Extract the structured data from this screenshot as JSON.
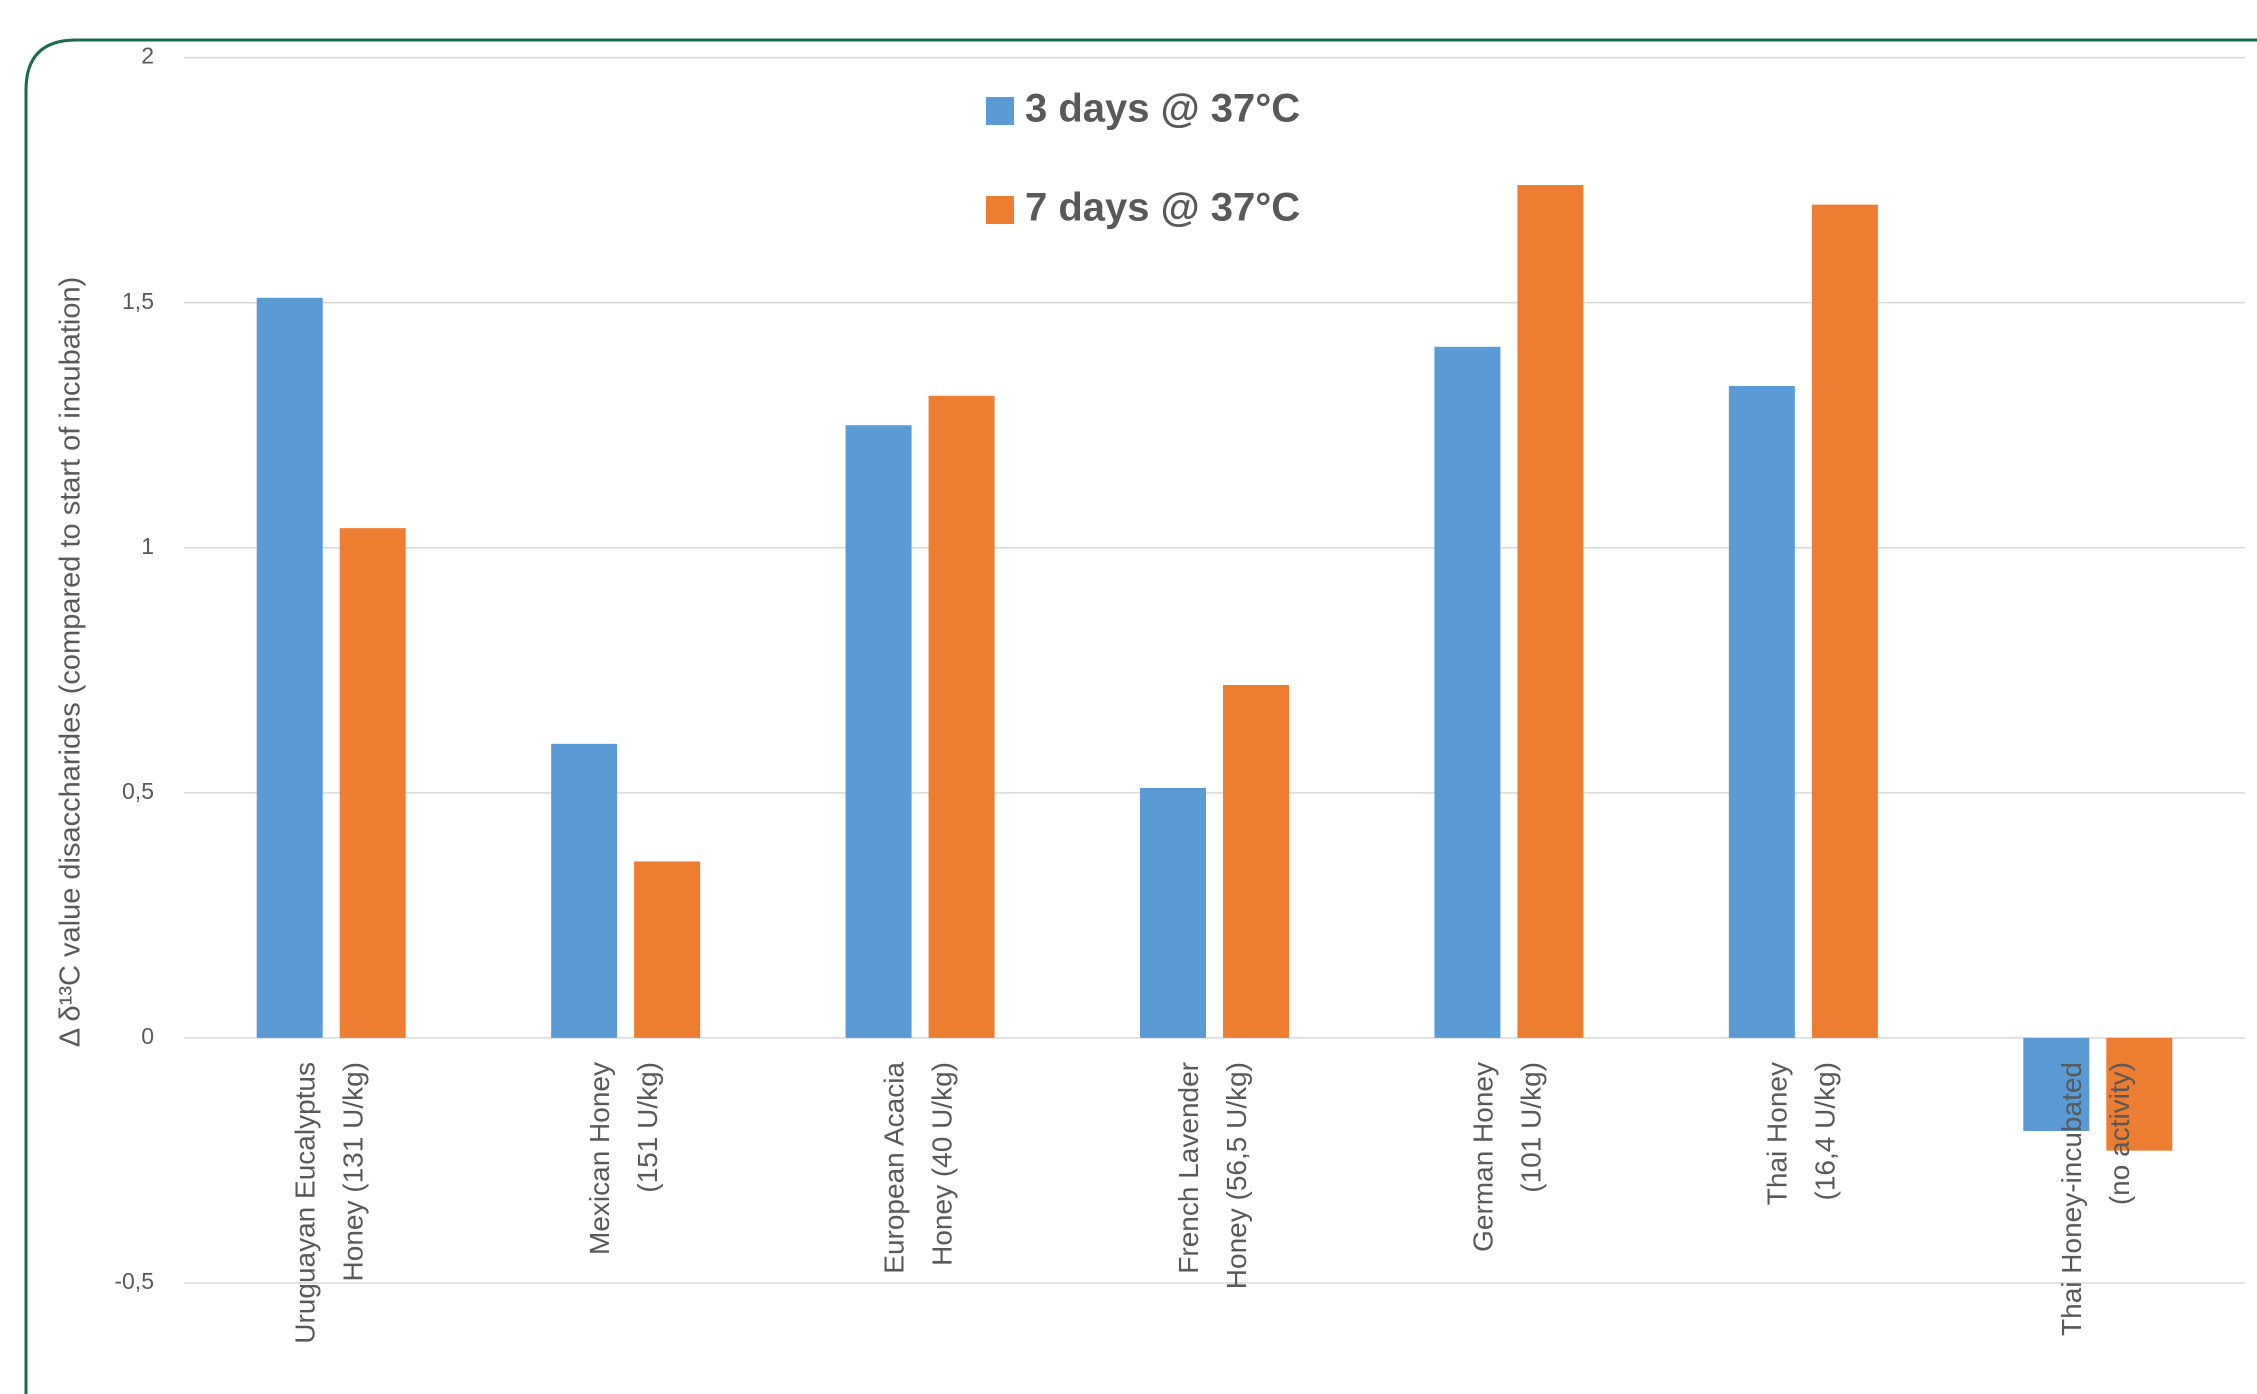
{
  "chart_data": {
    "type": "bar",
    "y_label": "Δ δ¹³C value disaccharides (compared to start of incubation)",
    "categories": [
      [
        "Uruguayan Eucalyptus",
        "Honey (131 U/kg)"
      ],
      [
        "Mexican Honey",
        "(151 U/kg)"
      ],
      [
        "European Acacia",
        "Honey (40 U/kg)"
      ],
      [
        "French Lavender",
        "Honey (56,5 U/kg)"
      ],
      [
        "German Honey",
        "(101 U/kg)"
      ],
      [
        "Thai Honey",
        "(16,4 U/kg)"
      ],
      [
        "Thai Honey-incubated",
        "(no activity)"
      ]
    ],
    "series": [
      {
        "name": "3 days @ 37°C",
        "color": "#5b9bd5",
        "values": [
          1.51,
          0.6,
          1.25,
          0.51,
          1.41,
          1.33,
          -0.19
        ]
      },
      {
        "name": "7 days @ 37°C",
        "color": "#ed7d31",
        "values": [
          1.04,
          0.36,
          1.31,
          0.72,
          1.74,
          1.7,
          -0.23
        ]
      }
    ],
    "ylim": [
      -0.5,
      2
    ],
    "yticks": [
      {
        "value": -0.5,
        "label": "-0,5"
      },
      0,
      {
        "value": 0.5,
        "label": "0,5"
      },
      1,
      {
        "value": 1.5,
        "label": "1,5"
      },
      2
    ],
    "grid": true
  }
}
